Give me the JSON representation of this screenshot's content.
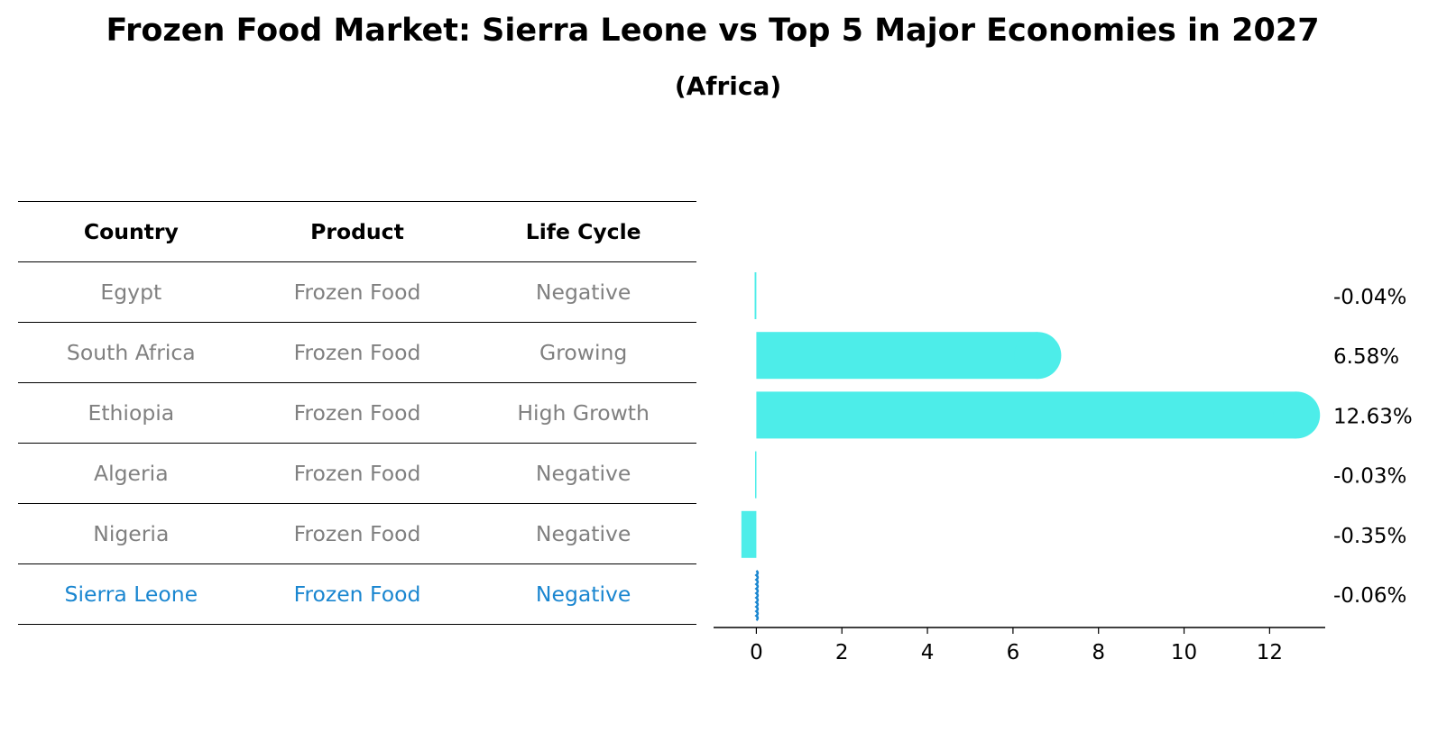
{
  "chart_data": {
    "type": "bar",
    "orientation": "horizontal",
    "title": "Frozen Food Market: Sierra Leone vs Top 5 Major Economies in 2027",
    "subtitle": "(Africa)",
    "table": {
      "headers": [
        "Country",
        "Product",
        "Life Cycle"
      ],
      "rows": [
        {
          "country": "Egypt",
          "product": "Frozen Food",
          "life_cycle": "Negative"
        },
        {
          "country": "South Africa",
          "product": "Frozen Food",
          "life_cycle": "Growing"
        },
        {
          "country": "Ethiopia",
          "product": "Frozen Food",
          "life_cycle": "High Growth"
        },
        {
          "country": "Algeria",
          "product": "Frozen Food",
          "life_cycle": "Negative"
        },
        {
          "country": "Nigeria",
          "product": "Frozen Food",
          "life_cycle": "Negative"
        },
        {
          "country": "Sierra Leone",
          "product": "Frozen Food",
          "life_cycle": "Negative"
        }
      ],
      "highlight_row": "Sierra Leone"
    },
    "categories": [
      "Egypt",
      "South Africa",
      "Ethiopia",
      "Algeria",
      "Nigeria",
      "Sierra Leone"
    ],
    "values": [
      -0.04,
      6.58,
      12.63,
      -0.03,
      -0.35,
      -0.06
    ],
    "value_labels": [
      "-0.04%",
      "6.58%",
      "12.63%",
      "-0.03%",
      "-0.35%",
      "-0.06%"
    ],
    "xlim": [
      -1,
      13.3
    ],
    "xticks": [
      0,
      2,
      4,
      6,
      8,
      10,
      12
    ],
    "xlabel": "",
    "ylabel": "",
    "bar_color": "#4dede9",
    "highlight_bar_color": "#1a86d0",
    "highlight_text_color": "#1a86d0",
    "muted_text_color": "#808080"
  }
}
